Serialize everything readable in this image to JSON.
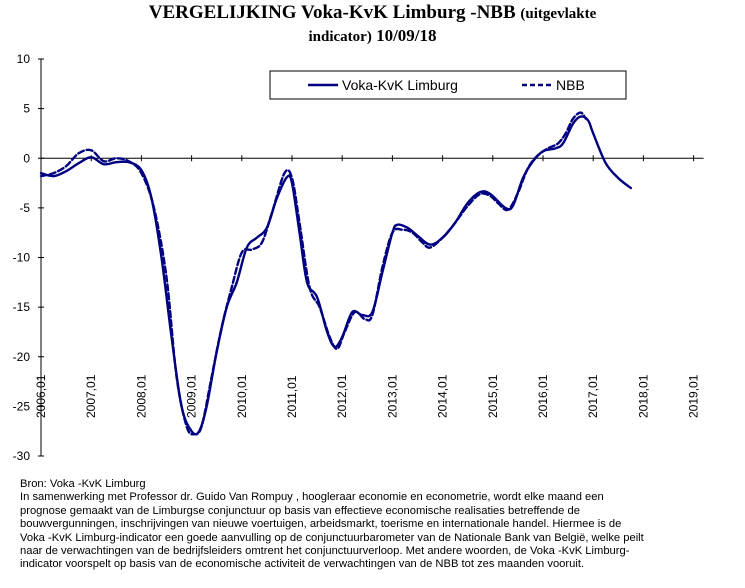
{
  "title": {
    "main": "VERGELIJKING Voka-KvK Limburg -NBB",
    "paren": "(uitgevlakte",
    "line2_small": "indicator)",
    "date": "10/09/18"
  },
  "legend": {
    "series_1": "Voka-KvK Limburg",
    "series_2": "NBB"
  },
  "footer": {
    "source": "Bron: Voka -KvK Limburg",
    "lines": [
      "In samenwerking met Professor dr. Guido Van Rompuy , hoogleraar economie en  econometrie,  wordt elke maand een",
      "prognose gemaakt van de Limburgse conjunctuur op basis van  effectieve economische realisaties betreffende de",
      "bouwvergunningen, inschrijvingen van nieuwe voertuigen,  arbeidsmarkt, toerisme en internationale handel. Hiermee is de",
      "Voka -KvK Limburg-indicator een goede aanvulling op de conjunctuurbarometer van de Nationale Bank van België, welke peilt",
      "naar de verwachtingen van de bedrijfsleiders omtrent het conjunctuurverloop. Met andere woorden, de Voka -KvK Limburg-",
      "indicator voorspelt op basis van de economische activiteit de verwachtingen van de NBB tot zes maanden vooruit."
    ]
  },
  "chart_data": {
    "type": "line",
    "ylim": [
      -30,
      10
    ],
    "yticks": [
      10,
      5,
      0,
      -5,
      -10,
      -15,
      -20,
      -25,
      -30
    ],
    "x_range": [
      2006.0,
      2019.0
    ],
    "xtick_labels": [
      "2006,01",
      "2007,01",
      "2008,01",
      "2009,01",
      "2010,01",
      "2011,01",
      "2012,01",
      "2013,01",
      "2014,01",
      "2015,01",
      "2016,01",
      "2017,01",
      "2018,01",
      "2019,01"
    ],
    "xtick_values": [
      2006,
      2007,
      2008,
      2009,
      2010,
      2011,
      2012,
      2013,
      2014,
      2015,
      2016,
      2017,
      2018,
      2019
    ],
    "grid": false,
    "legend_position": "top-right",
    "series": [
      {
        "name": "Voka-KvK Limburg",
        "color": "#000080",
        "dash": "solid",
        "points": [
          [
            2006.0,
            -1.5
          ],
          [
            2006.25,
            -1.8
          ],
          [
            2006.5,
            -1.3
          ],
          [
            2006.75,
            -0.5
          ],
          [
            2007.0,
            0.1
          ],
          [
            2007.25,
            -0.6
          ],
          [
            2007.5,
            -0.4
          ],
          [
            2007.75,
            -0.4
          ],
          [
            2008.0,
            -1.2
          ],
          [
            2008.2,
            -4.0
          ],
          [
            2008.4,
            -10.0
          ],
          [
            2008.6,
            -18.0
          ],
          [
            2008.8,
            -25.0
          ],
          [
            2009.0,
            -27.5
          ],
          [
            2009.15,
            -27.5
          ],
          [
            2009.3,
            -25.0
          ],
          [
            2009.5,
            -19.5
          ],
          [
            2009.7,
            -15.0
          ],
          [
            2009.9,
            -12.5
          ],
          [
            2010.1,
            -9.0
          ],
          [
            2010.3,
            -8.0
          ],
          [
            2010.5,
            -7.0
          ],
          [
            2010.7,
            -4.0
          ],
          [
            2010.9,
            -1.9
          ],
          [
            2011.0,
            -2.5
          ],
          [
            2011.15,
            -7.5
          ],
          [
            2011.3,
            -12.5
          ],
          [
            2011.5,
            -14.0
          ],
          [
            2011.7,
            -17.5
          ],
          [
            2011.85,
            -19.0
          ],
          [
            2012.0,
            -18.0
          ],
          [
            2012.2,
            -15.5
          ],
          [
            2012.4,
            -15.8
          ],
          [
            2012.6,
            -15.5
          ],
          [
            2012.8,
            -11.5
          ],
          [
            2013.0,
            -7.5
          ],
          [
            2013.1,
            -6.7
          ],
          [
            2013.3,
            -7.0
          ],
          [
            2013.5,
            -7.8
          ],
          [
            2013.75,
            -8.7
          ],
          [
            2014.0,
            -8.0
          ],
          [
            2014.25,
            -6.5
          ],
          [
            2014.5,
            -4.5
          ],
          [
            2014.75,
            -3.4
          ],
          [
            2014.95,
            -3.6
          ],
          [
            2015.25,
            -5.0
          ],
          [
            2015.4,
            -4.8
          ],
          [
            2015.6,
            -2.0
          ],
          [
            2015.8,
            -0.3
          ],
          [
            2016.0,
            0.7
          ],
          [
            2016.25,
            1.0
          ],
          [
            2016.4,
            1.5
          ],
          [
            2016.6,
            3.5
          ],
          [
            2016.75,
            4.2
          ],
          [
            2016.9,
            3.8
          ],
          [
            2017.0,
            2.5
          ],
          [
            2017.25,
            -0.5
          ],
          [
            2017.5,
            -2.0
          ],
          [
            2017.75,
            -3.0
          ]
        ]
      },
      {
        "name": "NBB",
        "color": "#000080",
        "dash": "dashed",
        "points": [
          [
            2006.0,
            -1.8
          ],
          [
            2006.25,
            -1.5
          ],
          [
            2006.5,
            -0.8
          ],
          [
            2006.75,
            0.5
          ],
          [
            2007.0,
            0.8
          ],
          [
            2007.25,
            -0.3
          ],
          [
            2007.5,
            0.0
          ],
          [
            2007.75,
            -0.3
          ],
          [
            2008.0,
            -1.5
          ],
          [
            2008.25,
            -5.0
          ],
          [
            2008.5,
            -12.0
          ],
          [
            2008.7,
            -22.0
          ],
          [
            2008.9,
            -27.0
          ],
          [
            2009.05,
            -27.8
          ],
          [
            2009.2,
            -27.0
          ],
          [
            2009.4,
            -22.0
          ],
          [
            2009.6,
            -17.0
          ],
          [
            2009.8,
            -13.0
          ],
          [
            2010.0,
            -9.5
          ],
          [
            2010.2,
            -9.2
          ],
          [
            2010.4,
            -8.5
          ],
          [
            2010.6,
            -5.5
          ],
          [
            2010.85,
            -1.5
          ],
          [
            2011.0,
            -2.0
          ],
          [
            2011.15,
            -6.5
          ],
          [
            2011.35,
            -13.0
          ],
          [
            2011.55,
            -15.0
          ],
          [
            2011.75,
            -18.0
          ],
          [
            2011.9,
            -19.2
          ],
          [
            2012.05,
            -17.5
          ],
          [
            2012.25,
            -15.5
          ],
          [
            2012.45,
            -16.2
          ],
          [
            2012.6,
            -15.8
          ],
          [
            2012.8,
            -11.0
          ],
          [
            2013.0,
            -7.5
          ],
          [
            2013.2,
            -7.2
          ],
          [
            2013.4,
            -7.5
          ],
          [
            2013.6,
            -8.5
          ],
          [
            2013.75,
            -9.0
          ],
          [
            2014.0,
            -8.0
          ],
          [
            2014.25,
            -6.5
          ],
          [
            2014.5,
            -4.8
          ],
          [
            2014.75,
            -3.6
          ],
          [
            2014.95,
            -3.8
          ],
          [
            2015.1,
            -4.5
          ],
          [
            2015.3,
            -5.2
          ],
          [
            2015.5,
            -3.5
          ],
          [
            2015.7,
            -1.0
          ],
          [
            2015.9,
            0.3
          ],
          [
            2016.1,
            1.0
          ],
          [
            2016.3,
            1.5
          ],
          [
            2016.45,
            2.5
          ],
          [
            2016.6,
            4.0
          ],
          [
            2016.75,
            4.6
          ],
          [
            2016.85,
            4.0
          ]
        ]
      }
    ]
  }
}
